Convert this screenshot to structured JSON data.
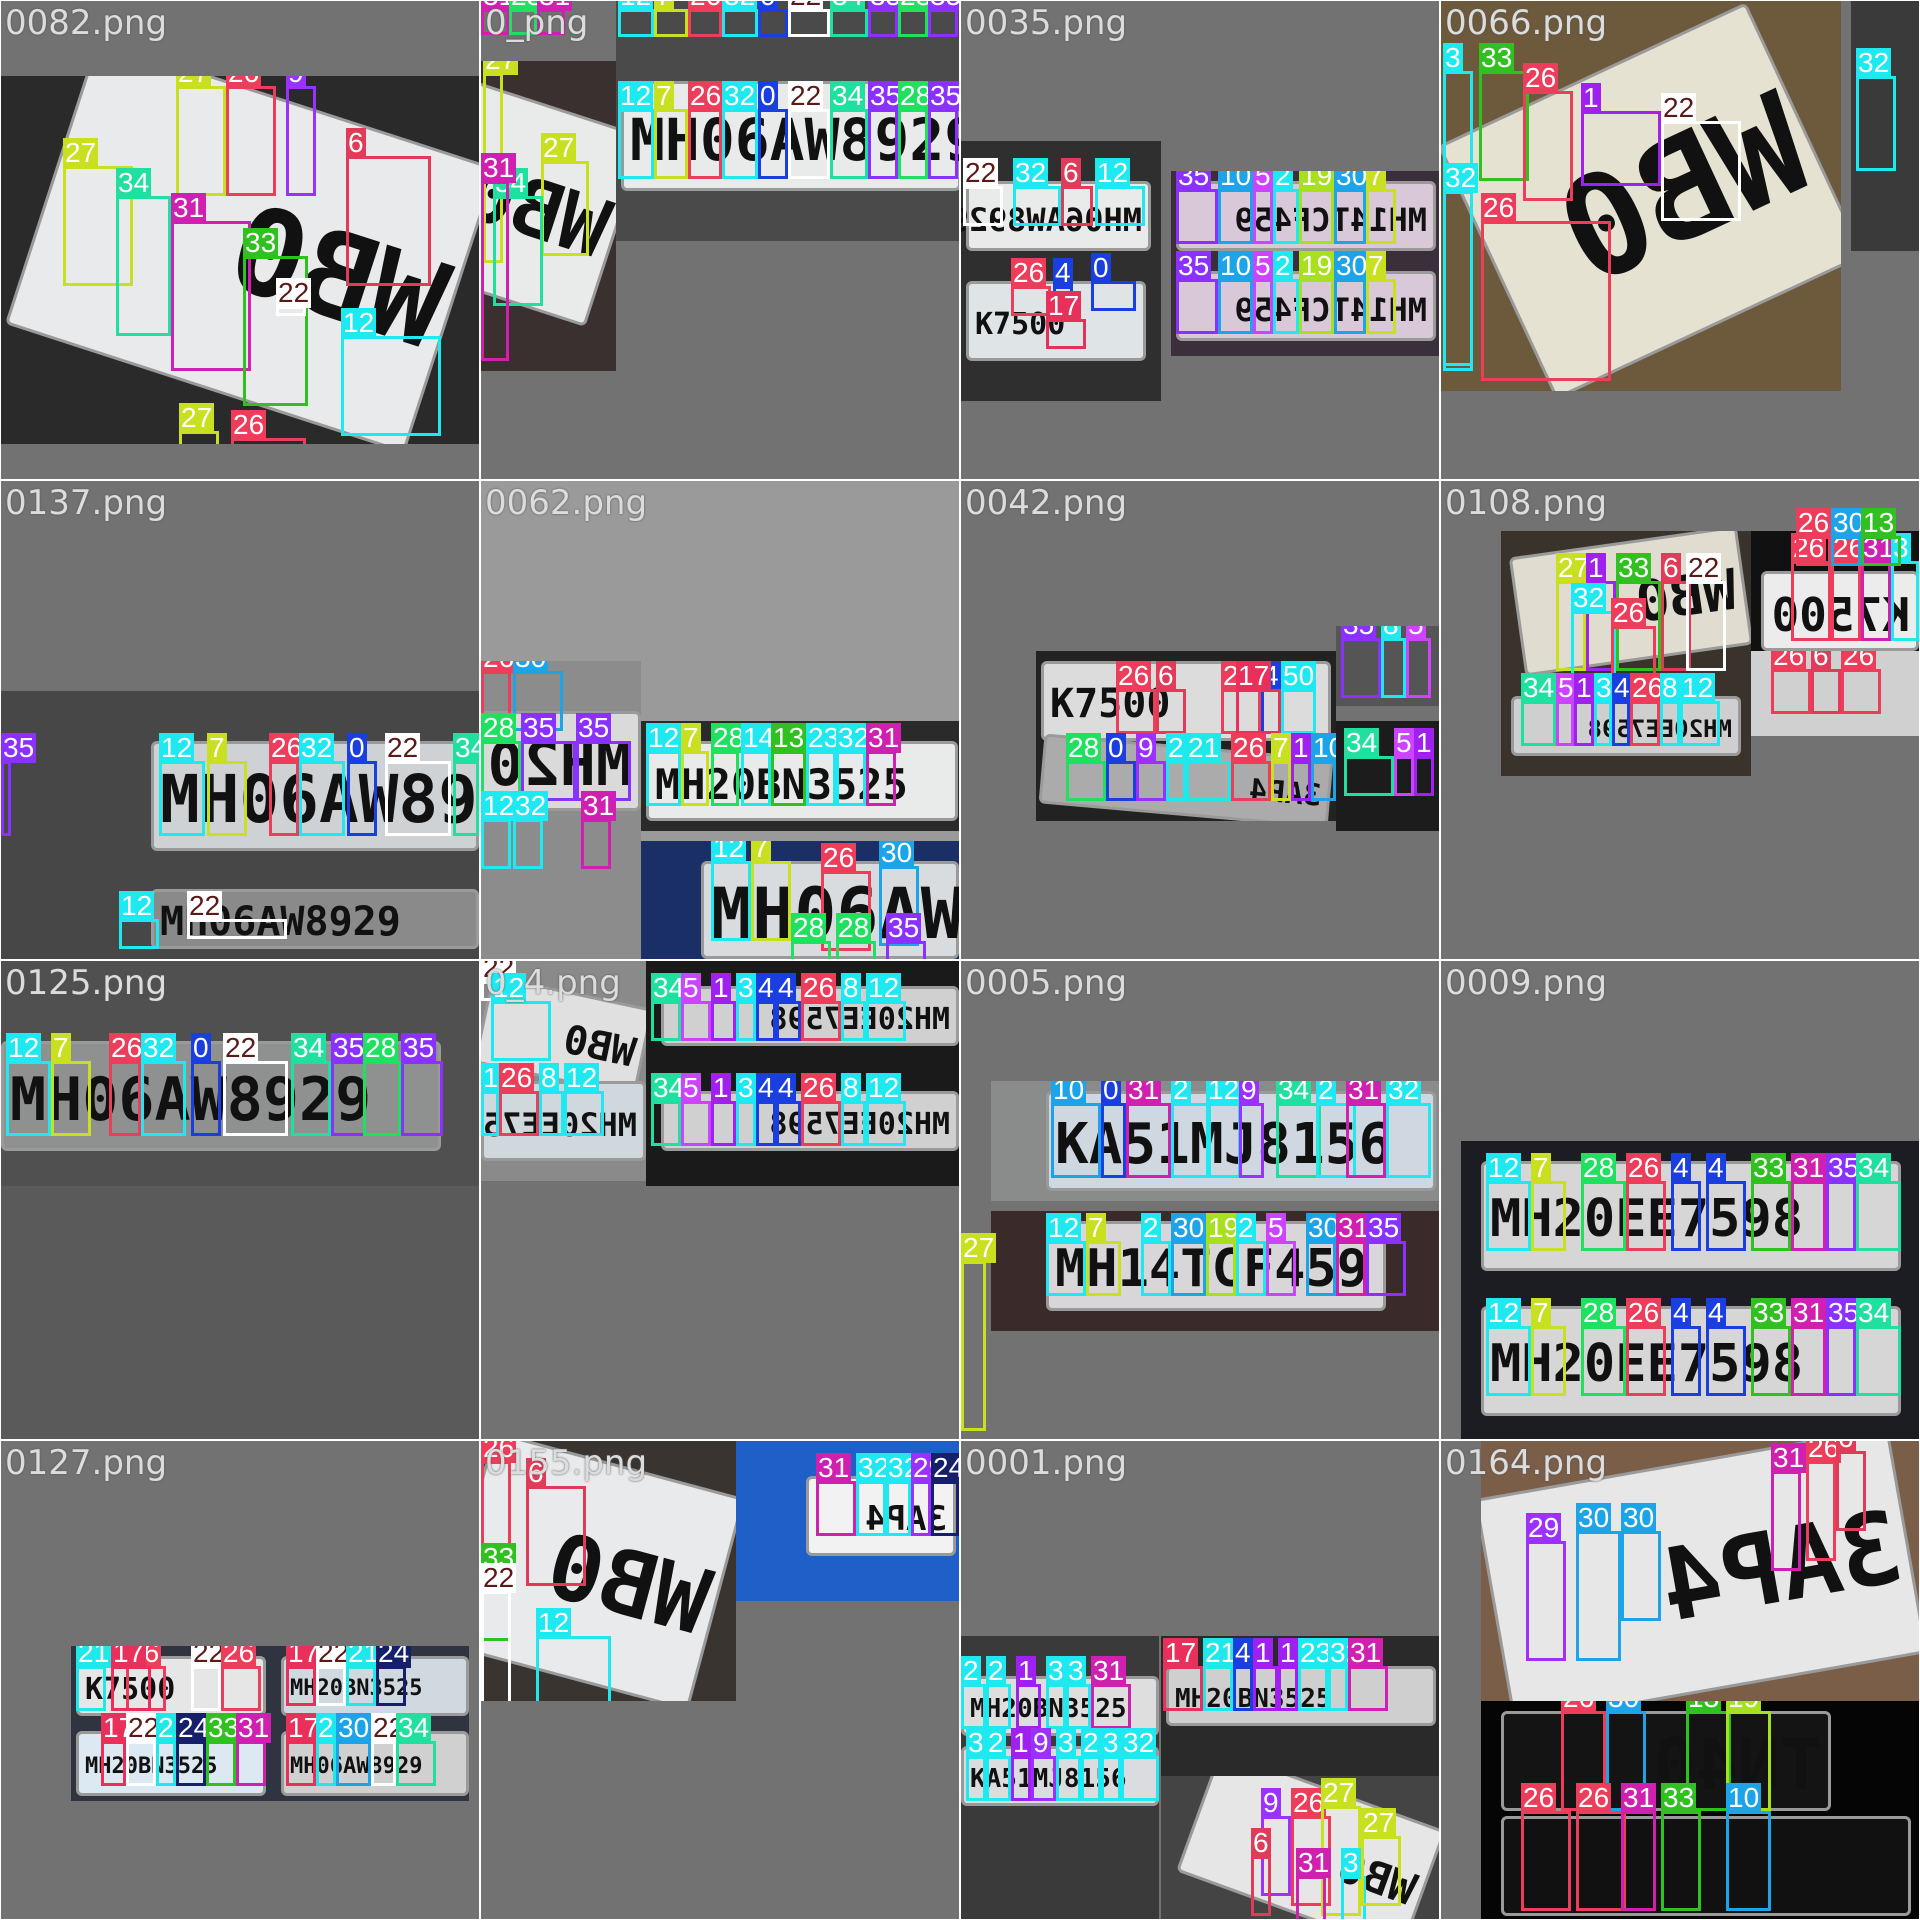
{
  "tiles": [
    {
      "name": "0082.png",
      "bg": "#727272"
    },
    {
      "name": "0_png",
      "bg": "#727272"
    },
    {
      "name": "0035.png",
      "bg": "#727272"
    },
    {
      "name": "0066.png",
      "bg": "#727272"
    },
    {
      "name": "0137.png",
      "bg": "#727272"
    },
    {
      "name": "0062.png",
      "bg": "#9a9a9a"
    },
    {
      "name": "0042.png",
      "bg": "#727272"
    },
    {
      "name": "0108.png",
      "bg": "#727272"
    },
    {
      "name": "0125.png",
      "bg": "#5a5a5a"
    },
    {
      "name": "0_4.png",
      "bg": "#727272"
    },
    {
      "name": "0005.png",
      "bg": "#727272"
    },
    {
      "name": "0009.png",
      "bg": "#727272"
    },
    {
      "name": "0127.png",
      "bg": "#727272"
    },
    {
      "name": "0155.png",
      "bg": "#727272"
    },
    {
      "name": "0001.png",
      "bg": "#727272"
    },
    {
      "name": "0164.png",
      "bg": "#727272"
    }
  ],
  "plates": {
    "mh06aw8929": "MH06AW8929",
    "mh20ee7598": "MH20EE7598",
    "ka51mj8156": "KA51MJ8156",
    "mh14tcf459": "MH14TCF459",
    "mh20bn3525": "MH20BN3525",
    "k7500": "K7500",
    "tn40": "TN40",
    "ap4": "3AP4",
    "wb0": "WB0"
  },
  "class_colors": {
    "0": "#1a3ee0",
    "1": "#a020f0",
    "4": "#1a3ee0",
    "5": "#cc44ff",
    "6": "#e03c5a",
    "7": "#c8e020",
    "9": "#9b30ff",
    "10": "#1ca3e8",
    "12": "#1ee8f0",
    "13": "#30c020",
    "17": "#e8305a",
    "19": "#a8e020",
    "21": "#1ee8e8",
    "22": "#ffffff",
    "24": "#16206a",
    "26": "#ec3d5a",
    "27": "#c8e020",
    "28": "#20e060",
    "29": "#9b30ff",
    "30": "#1ca3e8",
    "31": "#d020b0",
    "32": "#1ee8f0",
    "33": "#30c020",
    "34": "#20e0a0",
    "35": "#8a30ff"
  }
}
